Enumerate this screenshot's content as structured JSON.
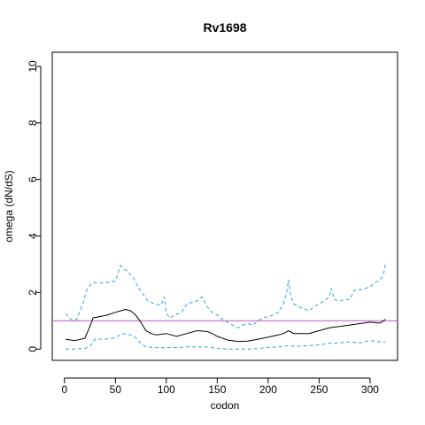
{
  "chart_data": {
    "type": "line",
    "title": "Rv1698",
    "xlabel": "codon",
    "ylabel": "omega (dN/dS)",
    "xlim": [
      -12,
      327
    ],
    "ylim": [
      -0.4,
      10.5
    ],
    "xticks": [
      0,
      50,
      100,
      150,
      200,
      250,
      300
    ],
    "yticks": [
      0,
      2,
      4,
      6,
      8,
      10
    ],
    "reference_line": {
      "y": 1,
      "color": "#cc66cc"
    },
    "grid": false,
    "legend": "none",
    "series": [
      {
        "style": "solid",
        "color": "#000000",
        "x": [
          1,
          10,
          20,
          25,
          28,
          35,
          42,
          50,
          55,
          60,
          65,
          70,
          75,
          80,
          85,
          90,
          100,
          110,
          120,
          130,
          140,
          145,
          150,
          160,
          170,
          180,
          190,
          200,
          210,
          215,
          220,
          225,
          230,
          240,
          250,
          260,
          270,
          280,
          290,
          300,
          310,
          315
        ],
        "y": [
          0.35,
          0.3,
          0.38,
          0.8,
          1.1,
          1.15,
          1.2,
          1.3,
          1.35,
          1.4,
          1.35,
          1.2,
          0.95,
          0.65,
          0.55,
          0.5,
          0.55,
          0.45,
          0.55,
          0.65,
          0.62,
          0.55,
          0.45,
          0.32,
          0.27,
          0.28,
          0.35,
          0.42,
          0.5,
          0.55,
          0.65,
          0.55,
          0.55,
          0.55,
          0.65,
          0.75,
          0.8,
          0.85,
          0.9,
          0.95,
          0.92,
          1.05
        ]
      },
      {
        "style": "dashed",
        "color": "#29a3e0",
        "x": [
          1,
          8,
          12,
          18,
          22,
          27,
          30,
          40,
          50,
          55,
          58,
          62,
          68,
          72,
          78,
          82,
          88,
          95,
          98,
          100,
          103,
          108,
          115,
          120,
          125,
          130,
          135,
          140,
          145,
          150,
          155,
          160,
          165,
          170,
          175,
          180,
          185,
          190,
          195,
          200,
          205,
          210,
          215,
          218,
          220,
          222,
          225,
          230,
          240,
          245,
          250,
          255,
          260,
          262,
          265,
          270,
          275,
          280,
          285,
          290,
          295,
          300,
          305,
          310,
          313,
          315
        ],
        "y": [
          1.25,
          1.0,
          1.05,
          1.6,
          2.1,
          2.35,
          2.35,
          2.35,
          2.4,
          2.95,
          2.85,
          2.75,
          2.5,
          2.2,
          1.9,
          1.7,
          1.6,
          1.55,
          1.85,
          1.3,
          1.1,
          1.2,
          1.3,
          1.6,
          1.65,
          1.7,
          1.85,
          1.5,
          1.3,
          1.2,
          1.05,
          0.95,
          0.85,
          0.75,
          0.85,
          0.9,
          0.85,
          1.0,
          1.1,
          1.15,
          1.2,
          1.3,
          1.6,
          2.0,
          2.45,
          1.9,
          1.6,
          1.5,
          1.35,
          1.5,
          1.6,
          1.7,
          1.85,
          2.15,
          1.75,
          1.7,
          1.75,
          1.75,
          2.1,
          2.1,
          2.15,
          2.2,
          2.35,
          2.45,
          2.6,
          3.0
        ]
      },
      {
        "style": "dashed",
        "color": "#29a3e0",
        "x": [
          1,
          10,
          20,
          25,
          30,
          40,
          50,
          55,
          60,
          65,
          70,
          75,
          80,
          90,
          100,
          110,
          120,
          130,
          140,
          145,
          150,
          160,
          170,
          180,
          190,
          200,
          210,
          220,
          225,
          230,
          240,
          250,
          260,
          270,
          280,
          290,
          300,
          305,
          310,
          315
        ],
        "y": [
          0.0,
          0.0,
          0.02,
          0.1,
          0.35,
          0.35,
          0.4,
          0.52,
          0.55,
          0.5,
          0.4,
          0.2,
          0.08,
          0.05,
          0.05,
          0.05,
          0.08,
          0.08,
          0.07,
          0.05,
          0.02,
          0.0,
          0.0,
          0.0,
          0.02,
          0.05,
          0.08,
          0.12,
          0.1,
          0.1,
          0.12,
          0.15,
          0.2,
          0.22,
          0.25,
          0.22,
          0.3,
          0.28,
          0.25,
          0.25
        ]
      }
    ]
  }
}
